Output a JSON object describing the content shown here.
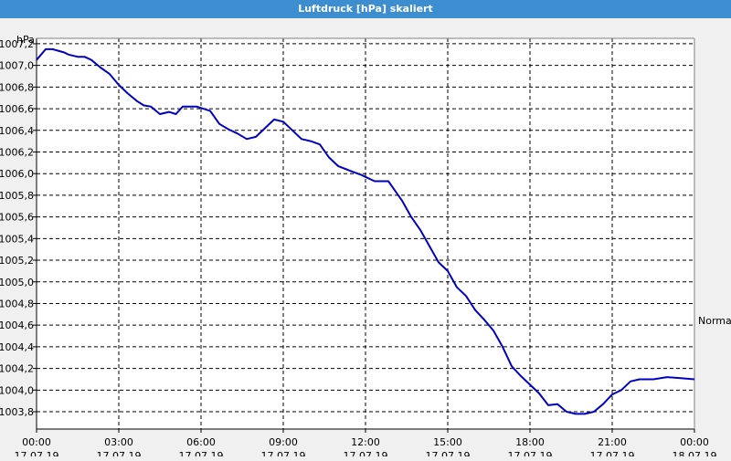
{
  "window": {
    "title": "Luftdruck [hPa] skaliert"
  },
  "chart_data": {
    "type": "line",
    "title": "Luftdruck [hPa] skaliert",
    "ylabel": "hPa",
    "ylim": [
      1003.64,
      1007.25
    ],
    "y_ticks": [
      "1003,8",
      "1004,0",
      "1004,2",
      "1004,4",
      "1004,6",
      "1004,8",
      "1005,0",
      "1005,2",
      "1005,4",
      "1005,6",
      "1005,8",
      "1006,0",
      "1006,2",
      "1006,4",
      "1006,6",
      "1006,8",
      "1007,0",
      "1007,2"
    ],
    "x_ticks": [
      {
        "time": "00:00",
        "date": "17.07.19"
      },
      {
        "time": "03:00",
        "date": "17.07.19"
      },
      {
        "time": "06:00",
        "date": "17.07.19"
      },
      {
        "time": "09:00",
        "date": "17.07.19"
      },
      {
        "time": "12:00",
        "date": "17.07.19"
      },
      {
        "time": "15:00",
        "date": "17.07.19"
      },
      {
        "time": "18:00",
        "date": "17.07.19"
      },
      {
        "time": "21:00",
        "date": "17.07.19"
      },
      {
        "time": "00:00",
        "date": "18.07.19"
      }
    ],
    "reference_label": "Normal",
    "reference_value": 1004.6,
    "grid": true,
    "line_color": "#0000c0",
    "series": [
      {
        "x": [
          "2019-07-17 00:00",
          "2019-07-17 00:20",
          "2019-07-17 00:35",
          "2019-07-17 01:00",
          "2019-07-17 01:10",
          "2019-07-17 01:30",
          "2019-07-17 01:45",
          "2019-07-17 02:00",
          "2019-07-17 02:20",
          "2019-07-17 02:40",
          "2019-07-17 03:00",
          "2019-07-17 03:20",
          "2019-07-17 03:40",
          "2019-07-17 03:55",
          "2019-07-17 04:10",
          "2019-07-17 04:30",
          "2019-07-17 04:50",
          "2019-07-17 05:05",
          "2019-07-17 05:20",
          "2019-07-17 05:35",
          "2019-07-17 05:50",
          "2019-07-17 06:20",
          "2019-07-17 06:40",
          "2019-07-17 07:00",
          "2019-07-17 07:20",
          "2019-07-17 07:40",
          "2019-07-17 08:00",
          "2019-07-17 08:20",
          "2019-07-17 08:40",
          "2019-07-17 09:00",
          "2019-07-17 09:20",
          "2019-07-17 09:40",
          "2019-07-17 10:00",
          "2019-07-17 10:20",
          "2019-07-17 10:40",
          "2019-07-17 11:00",
          "2019-07-17 11:30",
          "2019-07-17 11:50",
          "2019-07-17 12:00",
          "2019-07-17 12:20",
          "2019-07-17 12:50",
          "2019-07-17 13:00",
          "2019-07-17 13:20",
          "2019-07-17 13:40",
          "2019-07-17 14:00",
          "2019-07-17 14:20",
          "2019-07-17 14:40",
          "2019-07-17 15:00",
          "2019-07-17 15:20",
          "2019-07-17 15:40",
          "2019-07-17 16:00",
          "2019-07-17 16:20",
          "2019-07-17 16:40",
          "2019-07-17 17:00",
          "2019-07-17 17:20",
          "2019-07-17 17:40",
          "2019-07-17 18:00",
          "2019-07-17 18:20",
          "2019-07-17 18:40",
          "2019-07-17 19:00",
          "2019-07-17 19:20",
          "2019-07-17 19:40",
          "2019-07-17 20:00",
          "2019-07-17 20:20",
          "2019-07-17 20:40",
          "2019-07-17 21:00",
          "2019-07-17 21:20",
          "2019-07-17 21:40",
          "2019-07-17 22:00",
          "2019-07-17 22:30",
          "2019-07-17 23:00",
          "2019-07-17 23:30",
          "2019-07-18 00:00"
        ],
        "values": [
          1007.05,
          1007.15,
          1007.15,
          1007.12,
          1007.1,
          1007.08,
          1007.08,
          1007.05,
          1006.98,
          1006.92,
          1006.82,
          1006.74,
          1006.67,
          1006.63,
          1006.62,
          1006.55,
          1006.57,
          1006.55,
          1006.62,
          1006.62,
          1006.62,
          1006.58,
          1006.46,
          1006.41,
          1006.37,
          1006.32,
          1006.34,
          1006.42,
          1006.5,
          1006.48,
          1006.4,
          1006.32,
          1006.3,
          1006.27,
          1006.15,
          1006.07,
          1006.02,
          1005.99,
          1005.97,
          1005.93,
          1005.93,
          1005.87,
          1005.75,
          1005.6,
          1005.48,
          1005.33,
          1005.18,
          1005.1,
          1004.95,
          1004.87,
          1004.74,
          1004.65,
          1004.55,
          1004.4,
          1004.22,
          1004.13,
          1004.05,
          1003.97,
          1003.86,
          1003.87,
          1003.8,
          1003.78,
          1003.78,
          1003.8,
          1003.87,
          1003.96,
          1004.0,
          1004.08,
          1004.1,
          1004.1,
          1004.12,
          1004.11,
          1004.1
        ]
      }
    ]
  }
}
